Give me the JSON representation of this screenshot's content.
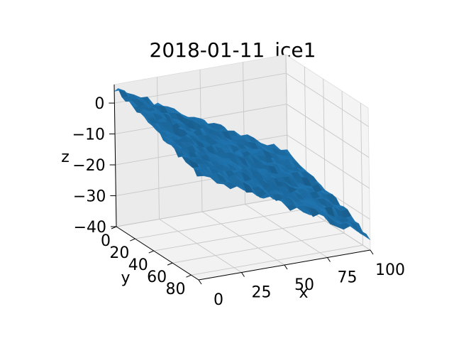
{
  "chart_data": {
    "type": "surface3d",
    "title": "2018-01-11_ice1",
    "xlabel": "x",
    "ylabel": "y",
    "zlabel": "z",
    "xlim": [
      0,
      100
    ],
    "ylim": [
      0,
      88
    ],
    "zlim": [
      -40,
      6
    ],
    "xticks": [
      0,
      25,
      50,
      75,
      100
    ],
    "yticks": [
      0,
      20,
      40,
      60,
      80
    ],
    "zticks": [
      0,
      -10,
      -20,
      -30,
      -40
    ],
    "grid": true,
    "surface_color": "#1f77b4",
    "surface": {
      "x_range": [
        0,
        100
      ],
      "y_range": [
        0,
        88
      ],
      "z_at_origin": 5,
      "z_slope_x": -0.3,
      "z_slope_y": -0.12,
      "z_noise_amplitude": 1.2,
      "grid_nx": 26,
      "grid_ny": 22
    }
  }
}
